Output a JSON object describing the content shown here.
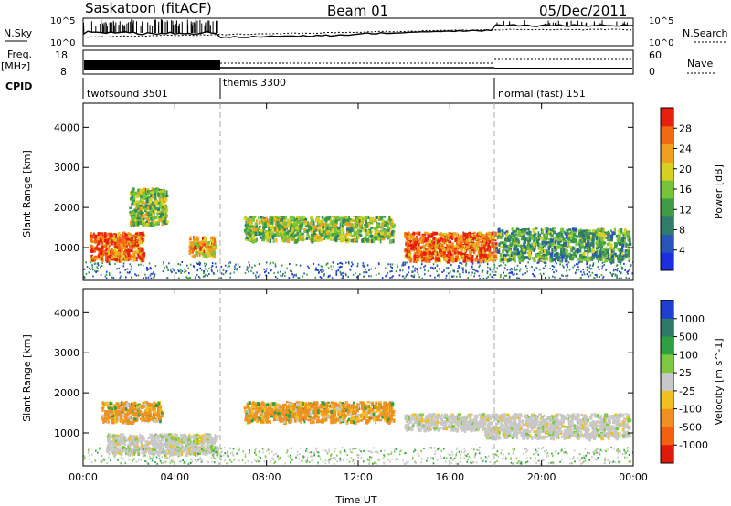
{
  "header": {
    "station": "Saskatoon (fitACF)",
    "beam": "Beam 01",
    "date": "05/Dec/2011"
  },
  "top_panels": {
    "nsky_label": "N.Sky",
    "nsky_ticks": [
      "10^5",
      "10^0"
    ],
    "nsearch_label": "N.Search",
    "nsearch_ticks": [
      "10^5",
      "10^0"
    ],
    "freq_label": "Freq.",
    "freq_unit": "[MHz]",
    "freq_ticks": [
      "8",
      "18"
    ],
    "nave_label": "Nave",
    "nave_ticks": [
      "60",
      "0"
    ],
    "cpid_label": "CPID"
  },
  "cpid_segments": [
    {
      "label": "twofsound 3501",
      "start_hour": 0
    },
    {
      "label": "themis 3300",
      "start_hour": 6
    },
    {
      "label": "normal (fast) 151",
      "start_hour": 18
    }
  ],
  "chart_data": [
    {
      "type": "heatmap",
      "title": "",
      "xlabel": "Time UT",
      "ylabel": "Slant Range [km]",
      "x_ticks": [
        "00:00",
        "04:00",
        "08:00",
        "12:00",
        "16:00",
        "20:00",
        "00:00"
      ],
      "xlim_hours": [
        0,
        24
      ],
      "ylim": [
        180,
        4600
      ],
      "y_ticks": [
        1000,
        2000,
        3000,
        4000
      ],
      "colorbar": {
        "label": "Power [dB]",
        "range": [
          0,
          32
        ],
        "ticks": [
          4,
          8,
          12,
          16,
          20,
          24,
          28
        ],
        "colors": [
          "#1a2fe0",
          "#2a55b8",
          "#2f7c6c",
          "#3f9c45",
          "#76c43a",
          "#d8d020",
          "#f0a020",
          "#f26a10",
          "#e81e0e"
        ]
      },
      "features": [
        {
          "hours": [
            0.3,
            2.6
          ],
          "range_km": [
            700,
            1400
          ],
          "value": 26
        },
        {
          "hours": [
            2.0,
            3.6
          ],
          "range_km": [
            1600,
            2500
          ],
          "value": 16
        },
        {
          "hours": [
            4.6,
            5.7
          ],
          "range_km": [
            800,
            1300
          ],
          "value": 22
        },
        {
          "hours": [
            7.0,
            13.5
          ],
          "range_km": [
            1200,
            1800
          ],
          "value": 14
        },
        {
          "hours": [
            14.0,
            18.0
          ],
          "range_km": [
            700,
            1400
          ],
          "value": 28
        },
        {
          "hours": [
            18.0,
            23.8
          ],
          "range_km": [
            700,
            1500
          ],
          "value": 12
        }
      ]
    },
    {
      "type": "heatmap",
      "title": "",
      "xlabel": "Time UT",
      "ylabel": "Slant Range [km]",
      "x_ticks": [
        "00:00",
        "04:00",
        "08:00",
        "12:00",
        "16:00",
        "20:00",
        "00:00"
      ],
      "xlim_hours": [
        0,
        24
      ],
      "ylim": [
        180,
        4600
      ],
      "y_ticks": [
        1000,
        2000,
        3000,
        4000
      ],
      "colorbar": {
        "label": "Velocity [m s^-1]",
        "ticks": [
          1000,
          500,
          100,
          25,
          -25,
          -100,
          -500,
          -1000
        ],
        "colors": [
          "#1f3fd0",
          "#2d7a6a",
          "#2fa040",
          "#7cc840",
          "#c8c8c8",
          "#f0c020",
          "#f09020",
          "#f26010",
          "#e01a0a"
        ]
      },
      "features": [
        {
          "hours": [
            0.8,
            3.4
          ],
          "range_km": [
            1300,
            1800
          ],
          "value": -120
        },
        {
          "hours": [
            1.0,
            5.8
          ],
          "range_km": [
            500,
            1000
          ],
          "value": 0
        },
        {
          "hours": [
            7.0,
            13.5
          ],
          "range_km": [
            1300,
            1800
          ],
          "value": -150
        },
        {
          "hours": [
            14.0,
            17.5
          ],
          "range_km": [
            1100,
            1500
          ],
          "value": 0
        },
        {
          "hours": [
            17.5,
            23.8
          ],
          "range_km": [
            900,
            1500
          ],
          "value": 0
        }
      ]
    }
  ]
}
